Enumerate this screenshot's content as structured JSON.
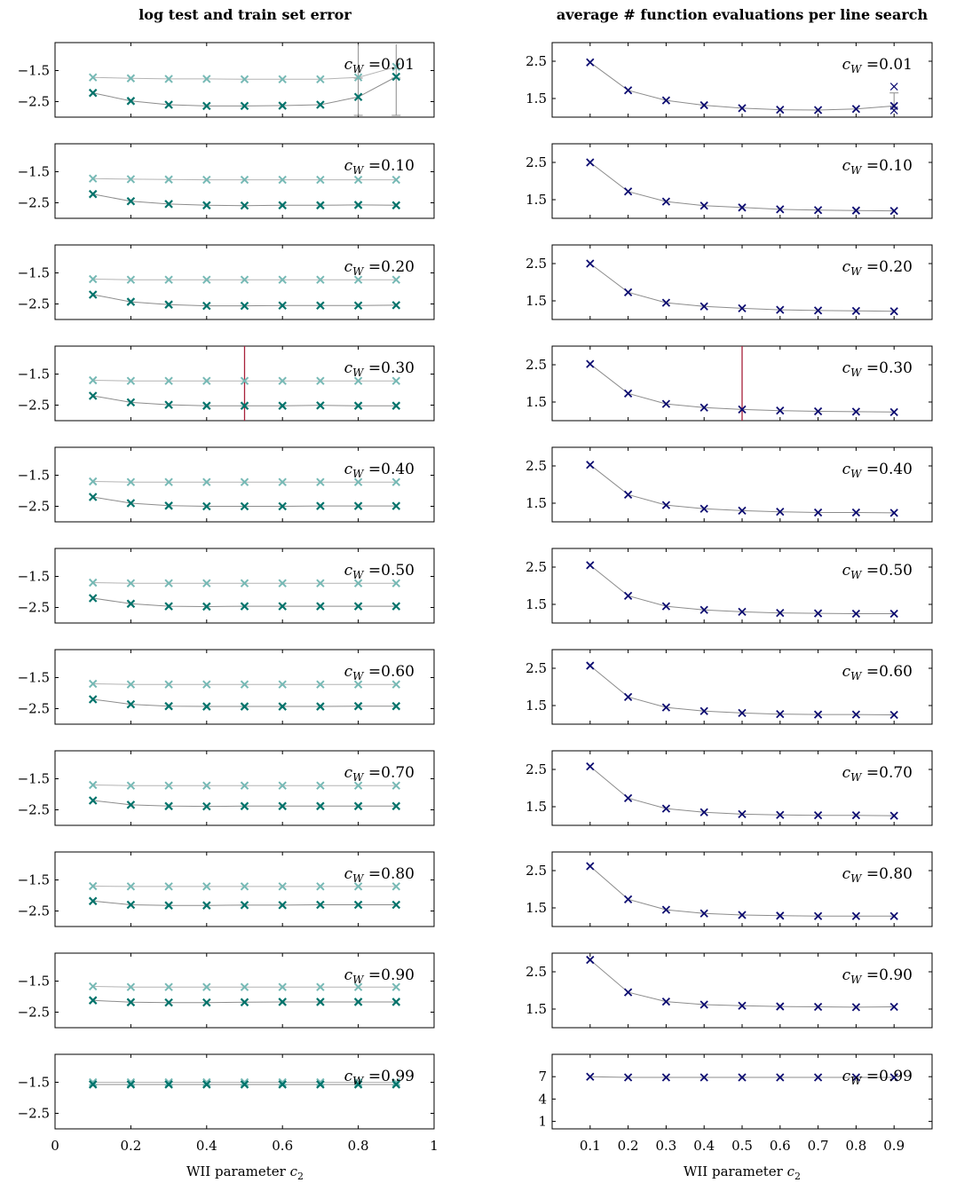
{
  "colors": {
    "test": "#76b9b5",
    "train": "#00736b",
    "evals": "#0b0b70",
    "line": "#8c8c8c",
    "marker": "#a8203a",
    "axis": "#000000"
  },
  "chart_data": [
    {
      "type": "line",
      "title": "log test and train set error",
      "xlabel": "WII parameter c₂",
      "xlim": [
        0,
        1
      ],
      "xticks": [
        "0",
        "0.2",
        "0.4",
        "0.6",
        "0.8",
        "1"
      ],
      "yticks": [
        "-1.5",
        "-2.5"
      ],
      "ylim": [
        -3.0,
        -0.6
      ],
      "panels": [
        {
          "cw_label": "c_W = 0.01",
          "x": [
            0.1,
            0.2,
            0.3,
            0.4,
            0.5,
            0.6,
            0.7,
            0.8,
            0.9
          ],
          "test": [
            -1.72,
            -1.75,
            -1.77,
            -1.77,
            -1.78,
            -1.78,
            -1.78,
            -1.72,
            -1.38
          ],
          "train": [
            -2.22,
            -2.48,
            -2.6,
            -2.64,
            -2.64,
            -2.63,
            -2.6,
            -2.35,
            -1.7
          ],
          "errorbars_x": [
            0.8,
            0.9
          ]
        },
        {
          "cw_label": "c_W = 0.10",
          "x": [
            0.1,
            0.2,
            0.3,
            0.4,
            0.5,
            0.6,
            0.7,
            0.8,
            0.9
          ],
          "test": [
            -1.72,
            -1.74,
            -1.75,
            -1.76,
            -1.76,
            -1.76,
            -1.76,
            -1.76,
            -1.76
          ],
          "train": [
            -2.22,
            -2.45,
            -2.54,
            -2.58,
            -2.59,
            -2.58,
            -2.58,
            -2.57,
            -2.58
          ]
        },
        {
          "cw_label": "c_W = 0.20",
          "x": [
            0.1,
            0.2,
            0.3,
            0.4,
            0.5,
            0.6,
            0.7,
            0.8,
            0.9
          ],
          "test": [
            -1.7,
            -1.72,
            -1.72,
            -1.72,
            -1.72,
            -1.72,
            -1.72,
            -1.72,
            -1.72
          ],
          "train": [
            -2.2,
            -2.43,
            -2.52,
            -2.56,
            -2.56,
            -2.55,
            -2.55,
            -2.55,
            -2.54
          ]
        },
        {
          "cw_label": "c_W = 0.30",
          "x": [
            0.1,
            0.2,
            0.3,
            0.4,
            0.5,
            0.6,
            0.7,
            0.8,
            0.9
          ],
          "test": [
            -1.7,
            -1.72,
            -1.72,
            -1.72,
            -1.72,
            -1.72,
            -1.72,
            -1.72,
            -1.72
          ],
          "train": [
            -2.2,
            -2.41,
            -2.49,
            -2.52,
            -2.52,
            -2.52,
            -2.51,
            -2.52,
            -2.52
          ],
          "vline_x": 0.5
        },
        {
          "cw_label": "c_W = 0.40",
          "x": [
            0.1,
            0.2,
            0.3,
            0.4,
            0.5,
            0.6,
            0.7,
            0.8,
            0.9
          ],
          "test": [
            -1.7,
            -1.72,
            -1.72,
            -1.72,
            -1.72,
            -1.72,
            -1.72,
            -1.72,
            -1.72
          ],
          "train": [
            -2.2,
            -2.4,
            -2.48,
            -2.5,
            -2.5,
            -2.5,
            -2.49,
            -2.49,
            -2.49
          ]
        },
        {
          "cw_label": "c_W = 0.50",
          "x": [
            0.1,
            0.2,
            0.3,
            0.4,
            0.5,
            0.6,
            0.7,
            0.8,
            0.9
          ],
          "test": [
            -1.7,
            -1.72,
            -1.72,
            -1.72,
            -1.72,
            -1.72,
            -1.72,
            -1.72,
            -1.72
          ],
          "train": [
            -2.2,
            -2.38,
            -2.46,
            -2.47,
            -2.46,
            -2.46,
            -2.46,
            -2.46,
            -2.46
          ]
        },
        {
          "cw_label": "c_W = 0.60",
          "x": [
            0.1,
            0.2,
            0.3,
            0.4,
            0.5,
            0.6,
            0.7,
            0.8,
            0.9
          ],
          "test": [
            -1.7,
            -1.72,
            -1.72,
            -1.72,
            -1.72,
            -1.72,
            -1.72,
            -1.72,
            -1.72
          ],
          "train": [
            -2.2,
            -2.36,
            -2.42,
            -2.43,
            -2.43,
            -2.43,
            -2.43,
            -2.42,
            -2.42
          ]
        },
        {
          "cw_label": "c_W = 0.70",
          "x": [
            0.1,
            0.2,
            0.3,
            0.4,
            0.5,
            0.6,
            0.7,
            0.8,
            0.9
          ],
          "test": [
            -1.7,
            -1.72,
            -1.72,
            -1.72,
            -1.72,
            -1.72,
            -1.72,
            -1.72,
            -1.72
          ],
          "train": [
            -2.2,
            -2.34,
            -2.38,
            -2.39,
            -2.38,
            -2.38,
            -2.38,
            -2.38,
            -2.38
          ]
        },
        {
          "cw_label": "c_W = 0.80",
          "x": [
            0.1,
            0.2,
            0.3,
            0.4,
            0.5,
            0.6,
            0.7,
            0.8,
            0.9
          ],
          "test": [
            -1.7,
            -1.71,
            -1.71,
            -1.71,
            -1.71,
            -1.71,
            -1.71,
            -1.71,
            -1.71
          ],
          "train": [
            -2.18,
            -2.3,
            -2.32,
            -2.32,
            -2.31,
            -2.31,
            -2.3,
            -2.3,
            -2.3
          ]
        },
        {
          "cw_label": "c_W = 0.90",
          "x": [
            0.1,
            0.2,
            0.3,
            0.4,
            0.5,
            0.6,
            0.7,
            0.8,
            0.9
          ],
          "test": [
            -1.67,
            -1.69,
            -1.69,
            -1.69,
            -1.69,
            -1.69,
            -1.69,
            -1.69,
            -1.69
          ],
          "train": [
            -2.12,
            -2.18,
            -2.19,
            -2.19,
            -2.18,
            -2.17,
            -2.17,
            -2.17,
            -2.17
          ]
        },
        {
          "cw_label": "c_W = 0.99",
          "x": [
            0.1,
            0.2,
            0.3,
            0.4,
            0.5,
            0.6,
            0.7,
            0.8,
            0.9
          ],
          "test": [
            -1.5,
            -1.5,
            -1.5,
            -1.5,
            -1.5,
            -1.5,
            -1.5,
            -1.5,
            -1.5
          ],
          "train": [
            -1.57,
            -1.57,
            -1.57,
            -1.57,
            -1.57,
            -1.57,
            -1.57,
            -1.57,
            -1.57
          ]
        }
      ]
    },
    {
      "type": "line",
      "title": "average # function evaluations per line search",
      "xlabel": "WII parameter c₂",
      "xlim": [
        0,
        1
      ],
      "xticks": [
        "0.1",
        "0.2",
        "0.3",
        "0.4",
        "0.5",
        "0.6",
        "0.7",
        "0.8",
        "0.9"
      ],
      "yticks": [
        "2.5",
        "1.5"
      ],
      "ylim": [
        1.0,
        3.0
      ],
      "last_panel_yticks": [
        "7",
        "4",
        "1"
      ],
      "last_panel_ylim": [
        0,
        10
      ],
      "panels": [
        {
          "cw_label": "c_W = 0.01",
          "x": [
            0.1,
            0.2,
            0.3,
            0.4,
            0.5,
            0.6,
            0.7,
            0.8,
            0.9
          ],
          "evals": [
            2.47,
            1.72,
            1.45,
            1.32,
            1.24,
            1.2,
            1.19,
            1.22,
            1.3
          ],
          "outliers": [
            [
              0.9,
              1.82
            ],
            [
              0.9,
              1.18
            ]
          ],
          "errorbars_x": [
            0.9
          ]
        },
        {
          "cw_label": "c_W = 0.10",
          "x": [
            0.1,
            0.2,
            0.3,
            0.4,
            0.5,
            0.6,
            0.7,
            0.8,
            0.9
          ],
          "evals": [
            2.5,
            1.72,
            1.45,
            1.34,
            1.29,
            1.24,
            1.22,
            1.21,
            1.2
          ]
        },
        {
          "cw_label": "c_W = 0.20",
          "x": [
            0.1,
            0.2,
            0.3,
            0.4,
            0.5,
            0.6,
            0.7,
            0.8,
            0.9
          ],
          "evals": [
            2.5,
            1.73,
            1.45,
            1.35,
            1.3,
            1.26,
            1.24,
            1.23,
            1.22
          ]
        },
        {
          "cw_label": "c_W = 0.30",
          "x": [
            0.1,
            0.2,
            0.3,
            0.4,
            0.5,
            0.6,
            0.7,
            0.8,
            0.9
          ],
          "evals": [
            2.52,
            1.73,
            1.45,
            1.35,
            1.3,
            1.27,
            1.25,
            1.24,
            1.23
          ],
          "vline_x": 0.5
        },
        {
          "cw_label": "c_W = 0.40",
          "x": [
            0.1,
            0.2,
            0.3,
            0.4,
            0.5,
            0.6,
            0.7,
            0.8,
            0.9
          ],
          "evals": [
            2.53,
            1.73,
            1.45,
            1.35,
            1.3,
            1.27,
            1.25,
            1.25,
            1.24
          ]
        },
        {
          "cw_label": "c_W = 0.50",
          "x": [
            0.1,
            0.2,
            0.3,
            0.4,
            0.5,
            0.6,
            0.7,
            0.8,
            0.9
          ],
          "evals": [
            2.55,
            1.73,
            1.45,
            1.35,
            1.3,
            1.27,
            1.26,
            1.25,
            1.25
          ]
        },
        {
          "cw_label": "c_W = 0.60",
          "x": [
            0.1,
            0.2,
            0.3,
            0.4,
            0.5,
            0.6,
            0.7,
            0.8,
            0.9
          ],
          "evals": [
            2.57,
            1.73,
            1.45,
            1.35,
            1.3,
            1.27,
            1.26,
            1.26,
            1.25
          ]
        },
        {
          "cw_label": "c_W = 0.70",
          "x": [
            0.1,
            0.2,
            0.3,
            0.4,
            0.5,
            0.6,
            0.7,
            0.8,
            0.9
          ],
          "evals": [
            2.58,
            1.73,
            1.45,
            1.35,
            1.3,
            1.28,
            1.27,
            1.27,
            1.26
          ]
        },
        {
          "cw_label": "c_W = 0.80",
          "x": [
            0.1,
            0.2,
            0.3,
            0.4,
            0.5,
            0.6,
            0.7,
            0.8,
            0.9
          ],
          "evals": [
            2.62,
            1.73,
            1.45,
            1.35,
            1.31,
            1.29,
            1.28,
            1.28,
            1.28
          ]
        },
        {
          "cw_label": "c_W = 0.90",
          "x": [
            0.1,
            0.2,
            0.3,
            0.4,
            0.5,
            0.6,
            0.7,
            0.8,
            0.9
          ],
          "evals": [
            2.82,
            1.95,
            1.7,
            1.62,
            1.59,
            1.57,
            1.56,
            1.55,
            1.56
          ]
        },
        {
          "cw_label": "c_W = 0.99",
          "x": [
            0.1,
            0.2,
            0.3,
            0.4,
            0.5,
            0.6,
            0.7,
            0.8,
            0.9
          ],
          "evals": [
            7.0,
            6.9,
            6.9,
            6.9,
            6.9,
            6.9,
            6.9,
            6.9,
            6.9
          ]
        }
      ]
    }
  ],
  "texts": {
    "left_title": "log test and train set error",
    "right_title": "average # function evaluations per line search",
    "xlabel_prefix": "WII parameter ",
    "xlabel_var": "c",
    "xlabel_sub": "2",
    "cw_symbol": "c",
    "cw_sub": "W",
    "cw_values": [
      "=0.01",
      "=0.10",
      "=0.20",
      "=0.30",
      "=0.40",
      "=0.50",
      "=0.60",
      "=0.70",
      "=0.80",
      "=0.90",
      "=0.99"
    ],
    "left_yticks": [
      "−1.5",
      "−2.5"
    ],
    "right_yticks": [
      "2.5",
      "1.5"
    ],
    "right_last_yticks": [
      "7",
      "4",
      "1"
    ],
    "left_xticks": [
      "0",
      "0.2",
      "0.4",
      "0.6",
      "0.8",
      "1"
    ],
    "right_xticks": [
      "0.1",
      "0.2",
      "0.3",
      "0.4",
      "0.5",
      "0.6",
      "0.7",
      "0.8",
      "0.9"
    ]
  }
}
